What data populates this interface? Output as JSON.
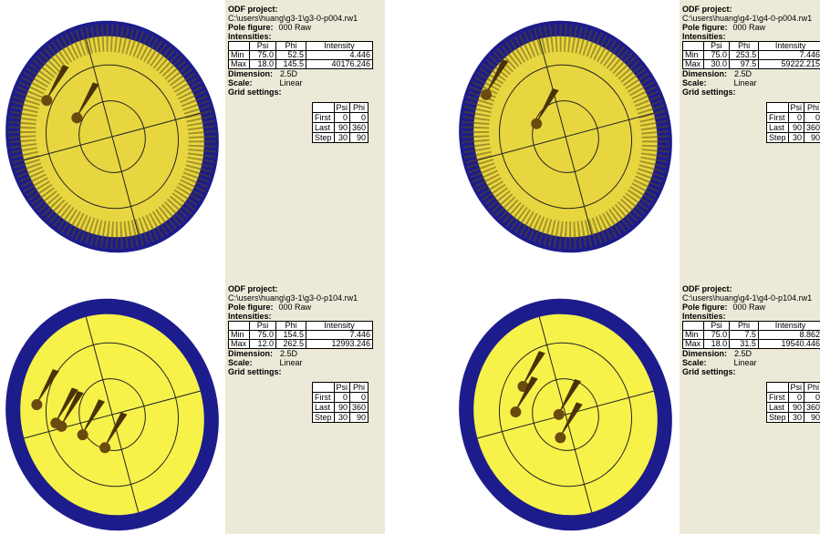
{
  "labels": {
    "project": "ODF project:",
    "pole_figure": "Pole figure:",
    "intensities": "Intensities:",
    "dimension": "Dimension:",
    "scale": "Scale:",
    "grid_settings": "Grid settings:",
    "psi": "Psi",
    "phi": "Phi",
    "intensity": "Intensity",
    "min": "Min",
    "max": "Max",
    "first": "First",
    "last": "Last",
    "step": "Step"
  },
  "panels": [
    {
      "path": "C:\\users\\huang\\g3-1\\g3-0-p004.rw1",
      "pole_figure": "000 Raw",
      "min": [
        "75.0",
        "52.5",
        "4.446"
      ],
      "max": [
        "18.0",
        "145.5",
        "40176.246"
      ],
      "dimension": "2.5D",
      "scale": "Linear",
      "grid": {
        "first": [
          0,
          0
        ],
        "last": [
          90,
          360
        ],
        "step": [
          30,
          90
        ]
      }
    },
    {
      "path": "C:\\users\\huang\\g4-1\\g4-0-p004.rw1",
      "pole_figure": "000 Raw",
      "min": [
        "75.0",
        "253.5",
        "7.446"
      ],
      "max": [
        "30.0",
        "97.5",
        "59222.215"
      ],
      "dimension": "2.5D",
      "scale": "Linear",
      "grid": {
        "first": [
          0,
          0
        ],
        "last": [
          90,
          360
        ],
        "step": [
          30,
          90
        ]
      }
    },
    {
      "path": "C:\\users\\huang\\g3-1\\g3-0-p104.rw1",
      "pole_figure": "000 Raw",
      "min": [
        "75.0",
        "154.5",
        "7.446"
      ],
      "max": [
        "12.0",
        "262.5",
        "12993.246"
      ],
      "dimension": "2.5D",
      "scale": "Linear",
      "grid": {
        "first": [
          0,
          0
        ],
        "last": [
          90,
          360
        ],
        "step": [
          30,
          90
        ]
      }
    },
    {
      "path": "C:\\users\\huang\\g4-1\\g4-0-p104.rw1",
      "pole_figure": "000 Raw",
      "min": [
        "75.0",
        "7.5",
        "8.862"
      ],
      "max": [
        "18.0",
        "31.5",
        "19540.446"
      ],
      "dimension": "2.5D",
      "scale": "Linear",
      "grid": {
        "first": [
          0,
          0
        ],
        "last": [
          90,
          360
        ],
        "step": [
          30,
          90
        ]
      }
    }
  ]
}
